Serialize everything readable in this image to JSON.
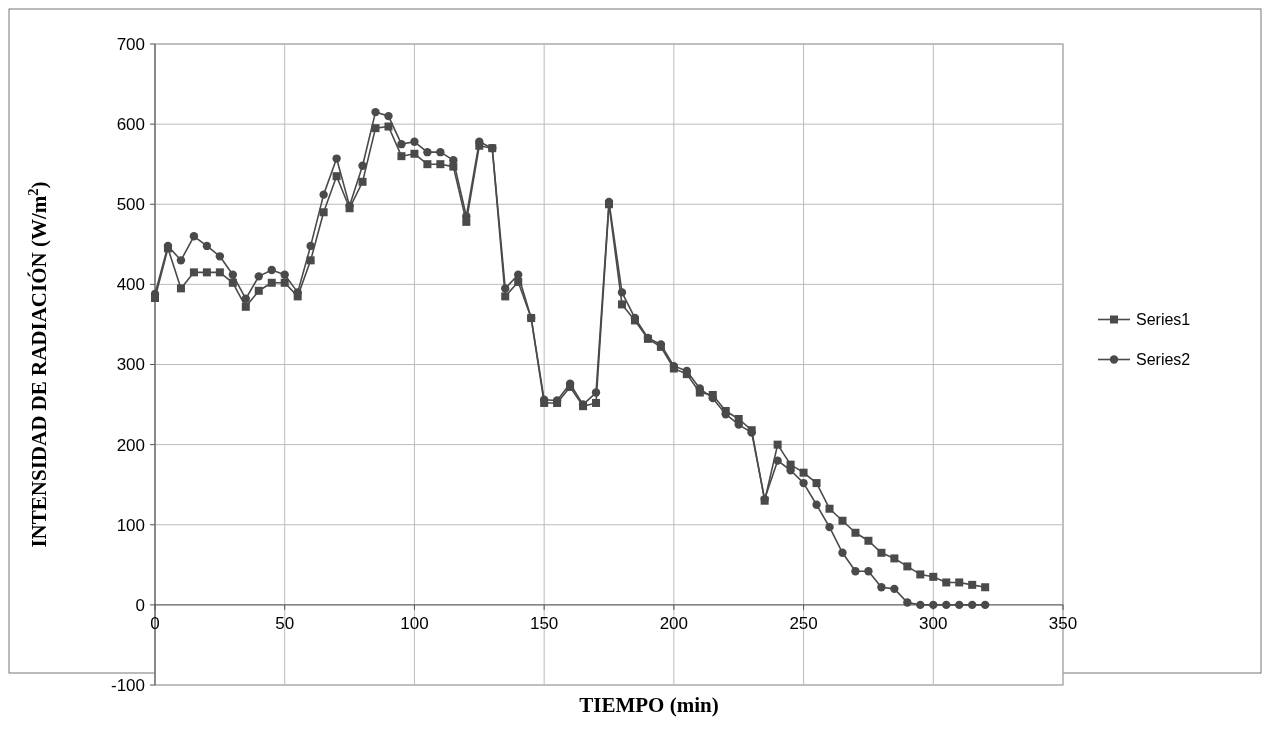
{
  "chart_data": {
    "type": "line",
    "xlabel": "TIEMPO  (min)",
    "ylabel": "INTENSIDAD DE RADIACIÓN  (W/m$^{2}$)",
    "x": [
      0,
      5,
      10,
      15,
      20,
      25,
      30,
      35,
      40,
      45,
      50,
      55,
      60,
      65,
      70,
      75,
      80,
      85,
      90,
      95,
      100,
      105,
      110,
      115,
      120,
      125,
      130,
      135,
      140,
      145,
      150,
      155,
      160,
      165,
      170,
      175,
      180,
      185,
      190,
      195,
      200,
      205,
      210,
      215,
      220,
      225,
      230,
      235,
      240,
      245,
      250,
      255,
      260,
      265,
      270,
      275,
      280,
      285,
      290,
      295,
      300,
      305,
      310,
      315,
      320
    ],
    "series": [
      {
        "name": "Series1",
        "color": "#4a4a4a",
        "marker": "square",
        "values": [
          383,
          445,
          395,
          415,
          415,
          415,
          402,
          372,
          392,
          402,
          402,
          385,
          430,
          490,
          535,
          495,
          528,
          595,
          597,
          560,
          563,
          550,
          550,
          547,
          478,
          573,
          570,
          385,
          403,
          358,
          252,
          252,
          272,
          248,
          252,
          500,
          375,
          355,
          332,
          322,
          295,
          288,
          265,
          262,
          242,
          232,
          218,
          130,
          200,
          175,
          165,
          152,
          120,
          105,
          90,
          80,
          65,
          58,
          48,
          38,
          35,
          28,
          28,
          25,
          22
        ]
      },
      {
        "name": "Series2",
        "color": "#4a4a4a",
        "marker": "circle",
        "values": [
          388,
          448,
          430,
          460,
          448,
          435,
          412,
          382,
          410,
          418,
          412,
          390,
          448,
          512,
          557,
          498,
          548,
          615,
          610,
          575,
          578,
          565,
          565,
          555,
          485,
          578,
          570,
          395,
          412,
          358,
          256,
          255,
          276,
          250,
          265,
          503,
          390,
          358,
          333,
          325,
          298,
          292,
          270,
          258,
          238,
          225,
          215,
          132,
          180,
          168,
          152,
          125,
          97,
          65,
          42,
          42,
          22,
          20,
          3,
          0,
          0,
          0,
          0,
          0,
          0
        ]
      }
    ],
    "xlim": [
      0,
      350
    ],
    "xticks": [
      0,
      50,
      100,
      150,
      200,
      250,
      300,
      350
    ],
    "ylim": [
      -100,
      700
    ],
    "yticks": [
      -100,
      0,
      100,
      200,
      300,
      400,
      500,
      600,
      700
    ],
    "grid": true,
    "legend": "right",
    "line_style": "solid"
  }
}
